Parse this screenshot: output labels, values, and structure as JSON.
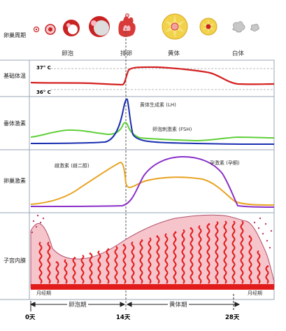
{
  "rows": {
    "ovarian_cycle": "卵巢周期",
    "basal_temp": "基础体温",
    "pituitary": "垂体激素",
    "ovarian_hormone": "卵巢激素",
    "endometrium": "子宫内膜"
  },
  "ovary_stages": {
    "follicle": "卵泡",
    "ovulation": "排卵",
    "corpus_luteum": "黄体",
    "corpus_albicans": "白体"
  },
  "temperature": {
    "high_label": "37° C",
    "low_label": "36° C",
    "line_color": "#d42020"
  },
  "pituitary_hormones": {
    "lh_label": "黄体生成素 (LH)",
    "fsh_label": "卵泡刺激素 (FSH)",
    "lh_color": "#1a2fb0",
    "fsh_color": "#5fcf3a"
  },
  "ovarian_hormones": {
    "estrogen_label": "雌激素 (雌二醇)",
    "progesterone_label": "孕激素 (孕酮)",
    "estrogen_color": "#e8a321",
    "progesterone_color": "#8a2fc9"
  },
  "endometrium_labels": {
    "menses_left": "月经期",
    "menses_right": "月经期",
    "fill_color": "#f6c4cb",
    "vessel_color": "#e21b1b"
  },
  "timeline": {
    "follicular_phase": "卵泡期",
    "luteal_phase": "黄体期",
    "day0": "0天",
    "day14": "14天",
    "day28": "28天"
  }
}
